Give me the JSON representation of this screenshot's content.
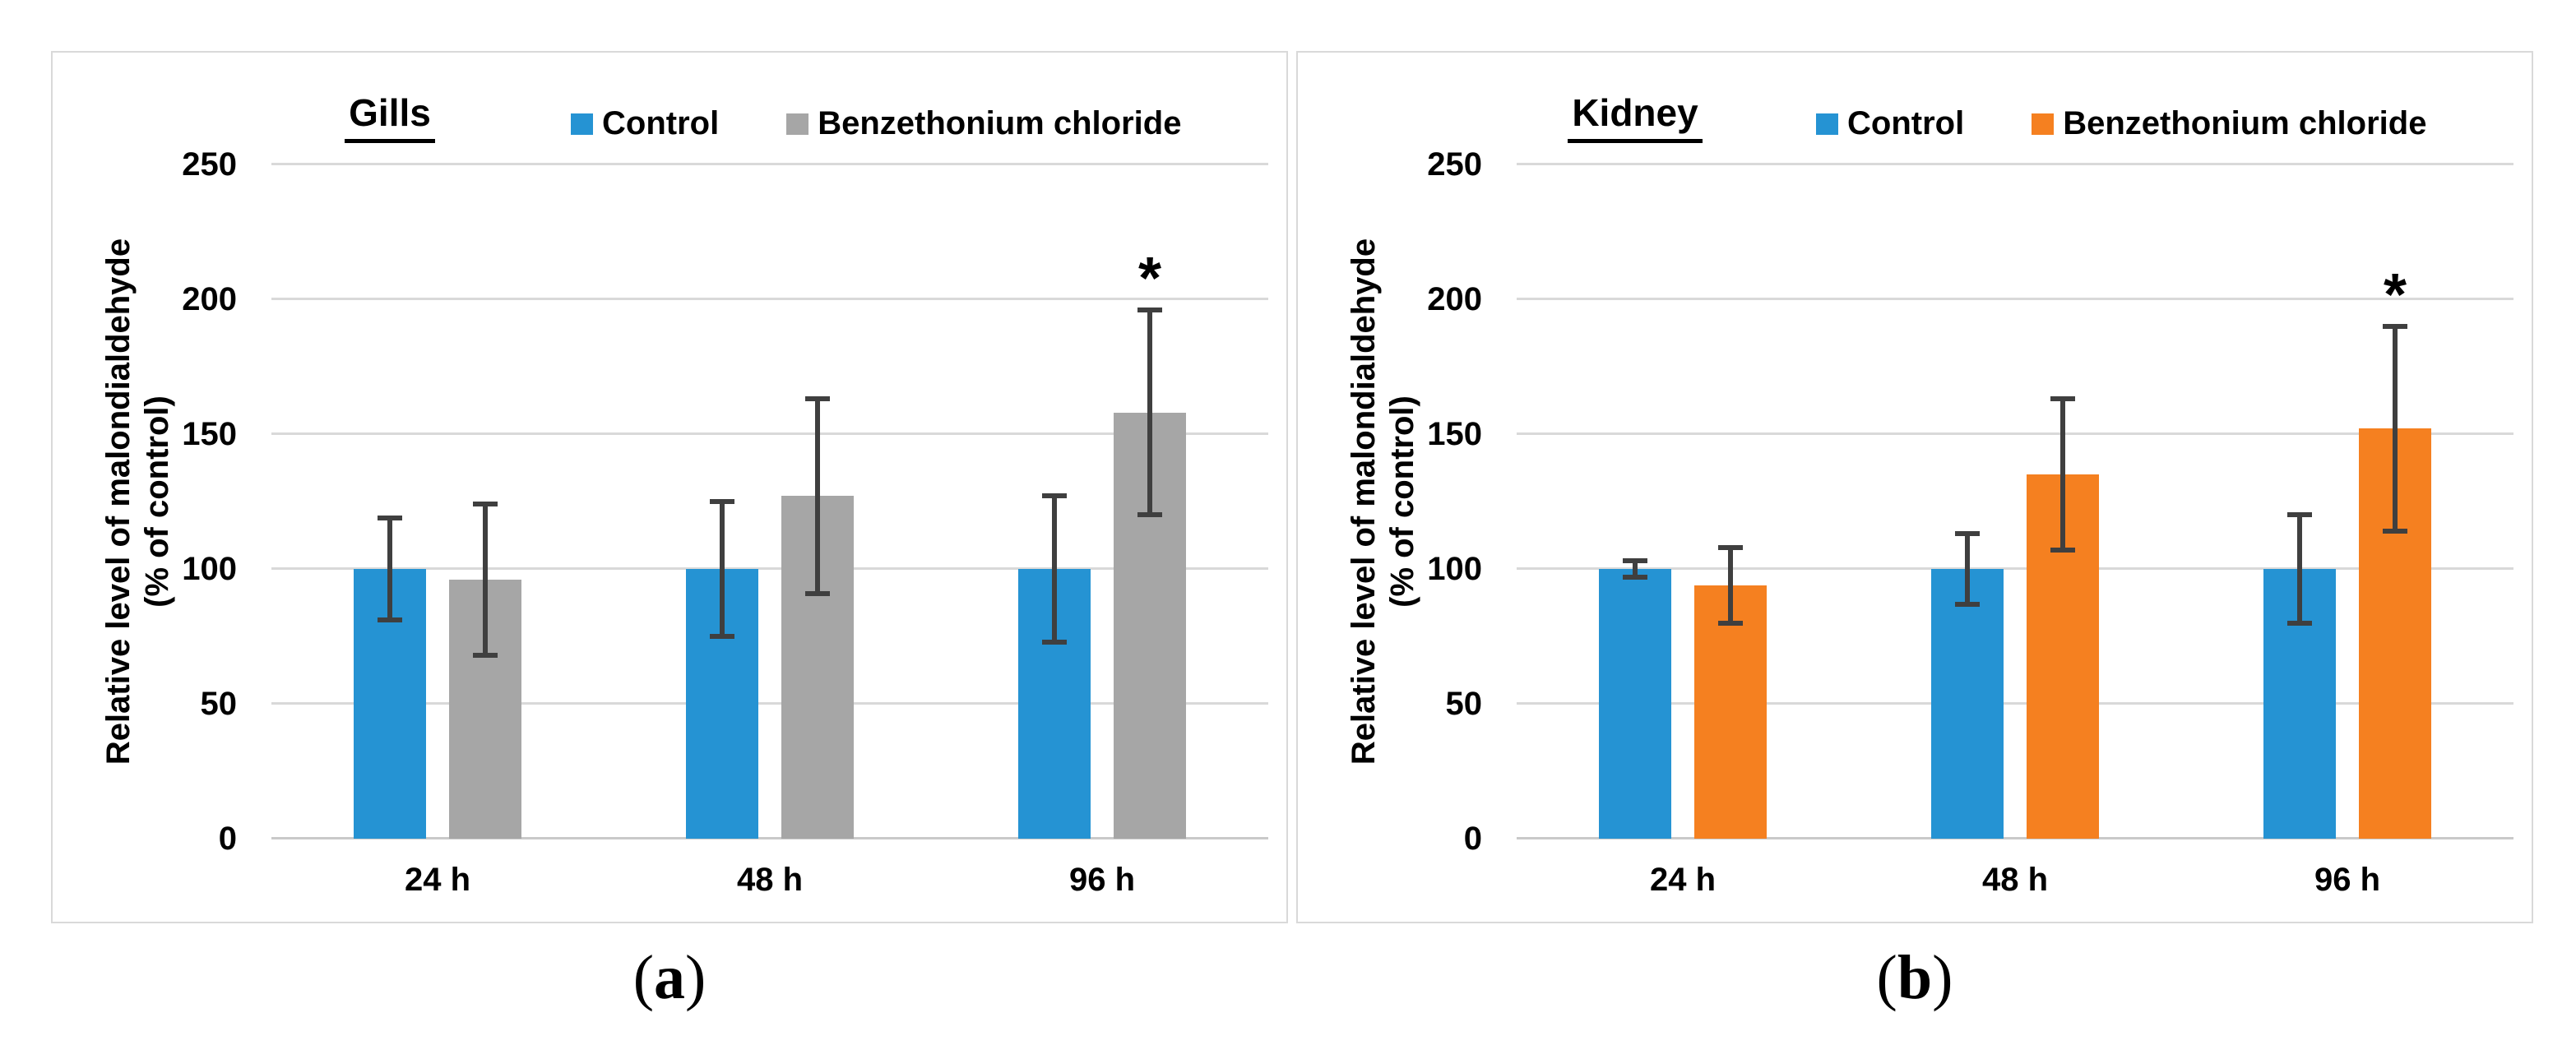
{
  "captions": {
    "a": {
      "open": "(",
      "letter": "a",
      "close": ")"
    },
    "b": {
      "open": "(",
      "letter": "b",
      "close": ")"
    }
  },
  "style": {
    "control_color": "#2593D3",
    "gills_treatment_color": "#A6A6A6",
    "kidney_treatment_color": "#F58020",
    "error_bar_color": "#3F3F3F",
    "gridline_color": "#D9D9D9",
    "baseline_color": "#C9C9C9",
    "panel_border_color": "#D9D9D9"
  },
  "chart_data": [
    {
      "type": "bar",
      "panel": "a",
      "title": "Gills",
      "ylabel_line1": "Relative level of malondialdehyde",
      "ylabel_line2": "(% of control)",
      "categories": [
        "24 h",
        "48 h",
        "96 h"
      ],
      "yticks": [
        0,
        50,
        100,
        150,
        200,
        250
      ],
      "ylim": [
        0,
        250
      ],
      "grid": true,
      "legend_position": "top",
      "series": [
        {
          "name": "Control",
          "color": "#2593D3",
          "values": [
            100,
            100,
            100
          ],
          "errors": [
            19,
            25,
            27
          ]
        },
        {
          "name": "Benzethonium chloride",
          "color": "#A6A6A6",
          "values": [
            96,
            127,
            158
          ],
          "errors": [
            28,
            36,
            38
          ]
        }
      ],
      "annotations": [
        {
          "text": "*",
          "category_index": 2,
          "series_index": 1
        }
      ]
    },
    {
      "type": "bar",
      "panel": "b",
      "title": "Kidney",
      "ylabel_line1": "Relative level of malondialdehyde",
      "ylabel_line2": "(% of control)",
      "categories": [
        "24 h",
        "48 h",
        "96 h"
      ],
      "yticks": [
        0,
        50,
        100,
        150,
        200,
        250
      ],
      "ylim": [
        0,
        250
      ],
      "grid": true,
      "legend_position": "top",
      "series": [
        {
          "name": "Control",
          "color": "#2593D3",
          "values": [
            100,
            100,
            100
          ],
          "errors": [
            3,
            13,
            20
          ]
        },
        {
          "name": "Benzethonium chloride",
          "color": "#F58020",
          "values": [
            94,
            135,
            152
          ],
          "errors": [
            14,
            28,
            38
          ]
        }
      ],
      "annotations": [
        {
          "text": "*",
          "category_index": 2,
          "series_index": 1
        }
      ]
    }
  ]
}
